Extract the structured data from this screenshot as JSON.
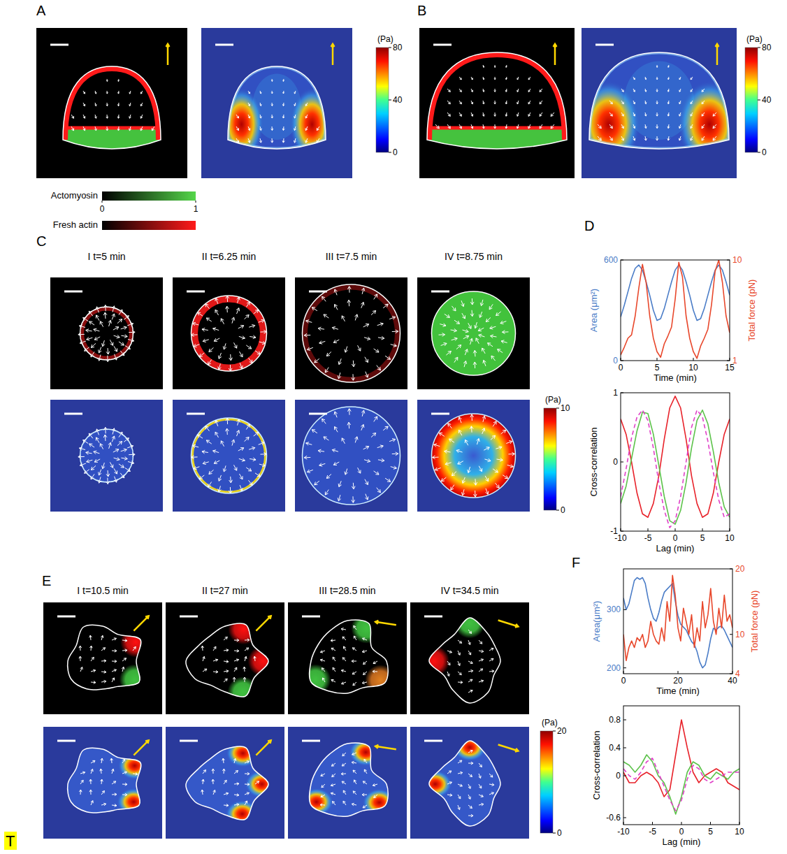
{
  "panels": {
    "A": {
      "label": "A",
      "colorbar": {
        "unit": "(Pa)",
        "range": [
          0,
          80
        ],
        "ticks": [
          0,
          40,
          80
        ]
      }
    },
    "B": {
      "label": "B",
      "colorbar": {
        "unit": "(Pa)",
        "range": [
          0,
          80
        ],
        "ticks": [
          0,
          40,
          80
        ]
      }
    },
    "legend": {
      "actomyosin": {
        "label": "Actomyosin",
        "range": [
          0,
          1
        ],
        "ticks": [
          0,
          1
        ]
      },
      "fresh_actin": {
        "label": "Fresh actin"
      }
    },
    "C": {
      "label": "C",
      "frames": [
        "I t=5 min",
        "II t=6.25 min",
        "III t=7.5 min",
        "IV t=8.75 min"
      ],
      "colorbar": {
        "unit": "(Pa)",
        "range": [
          0,
          10
        ],
        "ticks": [
          0,
          10
        ]
      }
    },
    "D": {
      "label": "D"
    },
    "E": {
      "label": "E",
      "frames": [
        "I t=10.5 min",
        "II t=27 min",
        "III t=28.5 min",
        "IV t=34.5 min"
      ],
      "colorbar": {
        "unit": "(Pa)",
        "range": [
          0,
          20
        ],
        "ticks": [
          0,
          20
        ]
      }
    },
    "F": {
      "label": "F"
    }
  },
  "corner_mark": "T",
  "chart_data": [
    {
      "type": "line",
      "x_label": "Time (min)",
      "y_label": "Area (μm²)",
      "y2_label": "Total force (pN)",
      "x": [
        0,
        0.5,
        1,
        1.5,
        2,
        2.5,
        3,
        3.5,
        4,
        4.5,
        5,
        5.5,
        6,
        6.5,
        7,
        7.5,
        8,
        8.5,
        9,
        9.5,
        10,
        10.5,
        11,
        11.5,
        12,
        12.5,
        13,
        13.5,
        14,
        14.5,
        15
      ],
      "xlim": [
        0,
        15
      ],
      "xticks": [
        0,
        5,
        10,
        15
      ],
      "ylim": [
        0,
        600
      ],
      "yticks": [
        0,
        600
      ],
      "y2lim": [
        1,
        10
      ],
      "y2ticks": [
        1,
        10
      ],
      "series": [
        {
          "color": "#4a7cc7",
          "values": [
            260,
            330,
            410,
            490,
            550,
            570,
            540,
            470,
            390,
            300,
            240,
            250,
            310,
            390,
            470,
            540,
            570,
            540,
            470,
            390,
            300,
            240,
            250,
            310,
            390,
            470,
            540,
            570,
            540,
            470,
            390
          ]
        },
        {
          "color": "#e8472b",
          "axis": "y2",
          "values": [
            1.5,
            2.2,
            3,
            3.3,
            5,
            7.5,
            9.6,
            8,
            5,
            3,
            1.8,
            1.3,
            2.5,
            3.2,
            4,
            6.5,
            9.8,
            8.5,
            5,
            3,
            1.8,
            1.2,
            2.3,
            3,
            3.8,
            6,
            9,
            10,
            8,
            5,
            3.5
          ]
        }
      ]
    },
    {
      "type": "line",
      "x_label": "Lag (min)",
      "y_label": "Cross-correlation",
      "x": [
        -10,
        -9,
        -8,
        -7,
        -6,
        -5,
        -4,
        -3,
        -2,
        -1,
        0,
        1,
        2,
        3,
        4,
        5,
        6,
        7,
        8,
        9,
        10
      ],
      "xlim": [
        -10,
        10
      ],
      "xticks": [
        -10,
        -5,
        0,
        5,
        10
      ],
      "ylim": [
        -1,
        1
      ],
      "yticks": [
        -1,
        0,
        1
      ],
      "series": [
        {
          "color": "#e8222a",
          "line_style": "solid",
          "values": [
            0.62,
            0.4,
            0.0,
            -0.45,
            -0.75,
            -0.8,
            -0.6,
            -0.2,
            0.33,
            0.78,
            0.95,
            0.78,
            0.33,
            -0.2,
            -0.6,
            -0.8,
            -0.75,
            -0.45,
            0.0,
            0.4,
            0.62
          ]
        },
        {
          "color": "#5cc24a",
          "line_style": "solid",
          "values": [
            -0.6,
            -0.35,
            0.05,
            0.45,
            0.72,
            0.7,
            0.4,
            -0.05,
            -0.5,
            -0.85,
            -0.9,
            -0.7,
            -0.3,
            0.2,
            0.6,
            0.75,
            0.55,
            0.15,
            -0.3,
            -0.65,
            -0.8
          ]
        },
        {
          "color": "#e040c8",
          "line_style": "dashed",
          "values": [
            -0.5,
            -0.1,
            0.35,
            0.65,
            0.75,
            0.6,
            0.2,
            -0.3,
            -0.7,
            -0.95,
            -0.85,
            -0.5,
            0.0,
            0.5,
            0.75,
            0.65,
            0.3,
            -0.15,
            -0.55,
            -0.8,
            -0.75
          ]
        }
      ]
    },
    {
      "type": "line",
      "x_label": "Time (min)",
      "y_label": "Area(μm²)",
      "y2_label": "Total force (pN)",
      "x": [
        0,
        1,
        2,
        3,
        4,
        5,
        6,
        7,
        8,
        9,
        10,
        11,
        12,
        13,
        14,
        15,
        16,
        17,
        18,
        19,
        20,
        21,
        22,
        23,
        24,
        25,
        26,
        27,
        28,
        29,
        30,
        31,
        32,
        33,
        34,
        35,
        36,
        37,
        38,
        39,
        40
      ],
      "xlim": [
        0,
        40
      ],
      "xticks": [
        0,
        20,
        40
      ],
      "ylim": [
        190,
        370
      ],
      "yticks": [
        200,
        300
      ],
      "y2lim": [
        4,
        20
      ],
      "y2ticks": [
        4,
        10,
        20
      ],
      "series": [
        {
          "color": "#4a7cc7",
          "values": [
            320,
            300,
            310,
            330,
            350,
            355,
            352,
            355,
            345,
            320,
            300,
            285,
            280,
            295,
            315,
            330,
            335,
            340,
            345,
            315,
            290,
            275,
            270,
            265,
            255,
            245,
            240,
            228,
            210,
            200,
            205,
            225,
            250,
            268,
            265,
            270,
            272,
            265,
            255,
            245,
            235
          ]
        },
        {
          "color": "#e8472b",
          "axis": "y2",
          "values": [
            10,
            6,
            8,
            9,
            8,
            9.5,
            9,
            10,
            8,
            9,
            12,
            10,
            9,
            8.5,
            11,
            9,
            15,
            12,
            19,
            16,
            11,
            9,
            14,
            12,
            10,
            13,
            8,
            11,
            9,
            15,
            11,
            13,
            17,
            12,
            10,
            14,
            11,
            16,
            12,
            13,
            11
          ]
        }
      ]
    },
    {
      "type": "line",
      "x_label": "Lag (min)",
      "y_label": "Cross-correlation",
      "x": [
        -10,
        -9,
        -8,
        -7,
        -6,
        -5,
        -4,
        -3,
        -2,
        -1,
        0,
        1,
        2,
        3,
        4,
        5,
        6,
        7,
        8,
        9,
        10
      ],
      "xlim": [
        -10,
        10
      ],
      "xticks": [
        -10,
        -5,
        0,
        5,
        10
      ],
      "ylim": [
        -0.7,
        1.0
      ],
      "yticks": [
        -0.6,
        0,
        0.4,
        0.8
      ],
      "series": [
        {
          "color": "#e8222a",
          "line_style": "solid",
          "values": [
            0.05,
            -0.1,
            -0.1,
            0.0,
            0.05,
            0.0,
            -0.1,
            -0.3,
            -0.2,
            0.3,
            0.8,
            0.4,
            0.05,
            -0.1,
            0.0,
            0.05,
            0.1,
            0.05,
            -0.1,
            -0.15,
            -0.2
          ]
        },
        {
          "color": "#5cc24a",
          "line_style": "solid",
          "values": [
            0.2,
            0.15,
            0.05,
            0.15,
            0.3,
            0.2,
            0.0,
            -0.1,
            -0.3,
            -0.55,
            -0.3,
            0.05,
            0.2,
            0.15,
            0.0,
            -0.05,
            0.05,
            0.0,
            -0.05,
            0.05,
            0.1
          ]
        },
        {
          "color": "#e040c8",
          "line_style": "dashed",
          "values": [
            0.1,
            0.0,
            -0.05,
            0.05,
            0.2,
            0.25,
            0.05,
            -0.15,
            -0.35,
            -0.5,
            -0.35,
            -0.05,
            0.15,
            0.1,
            -0.05,
            -0.1,
            -0.05,
            0.0,
            0.05,
            0.05,
            0.05
          ]
        }
      ]
    }
  ]
}
